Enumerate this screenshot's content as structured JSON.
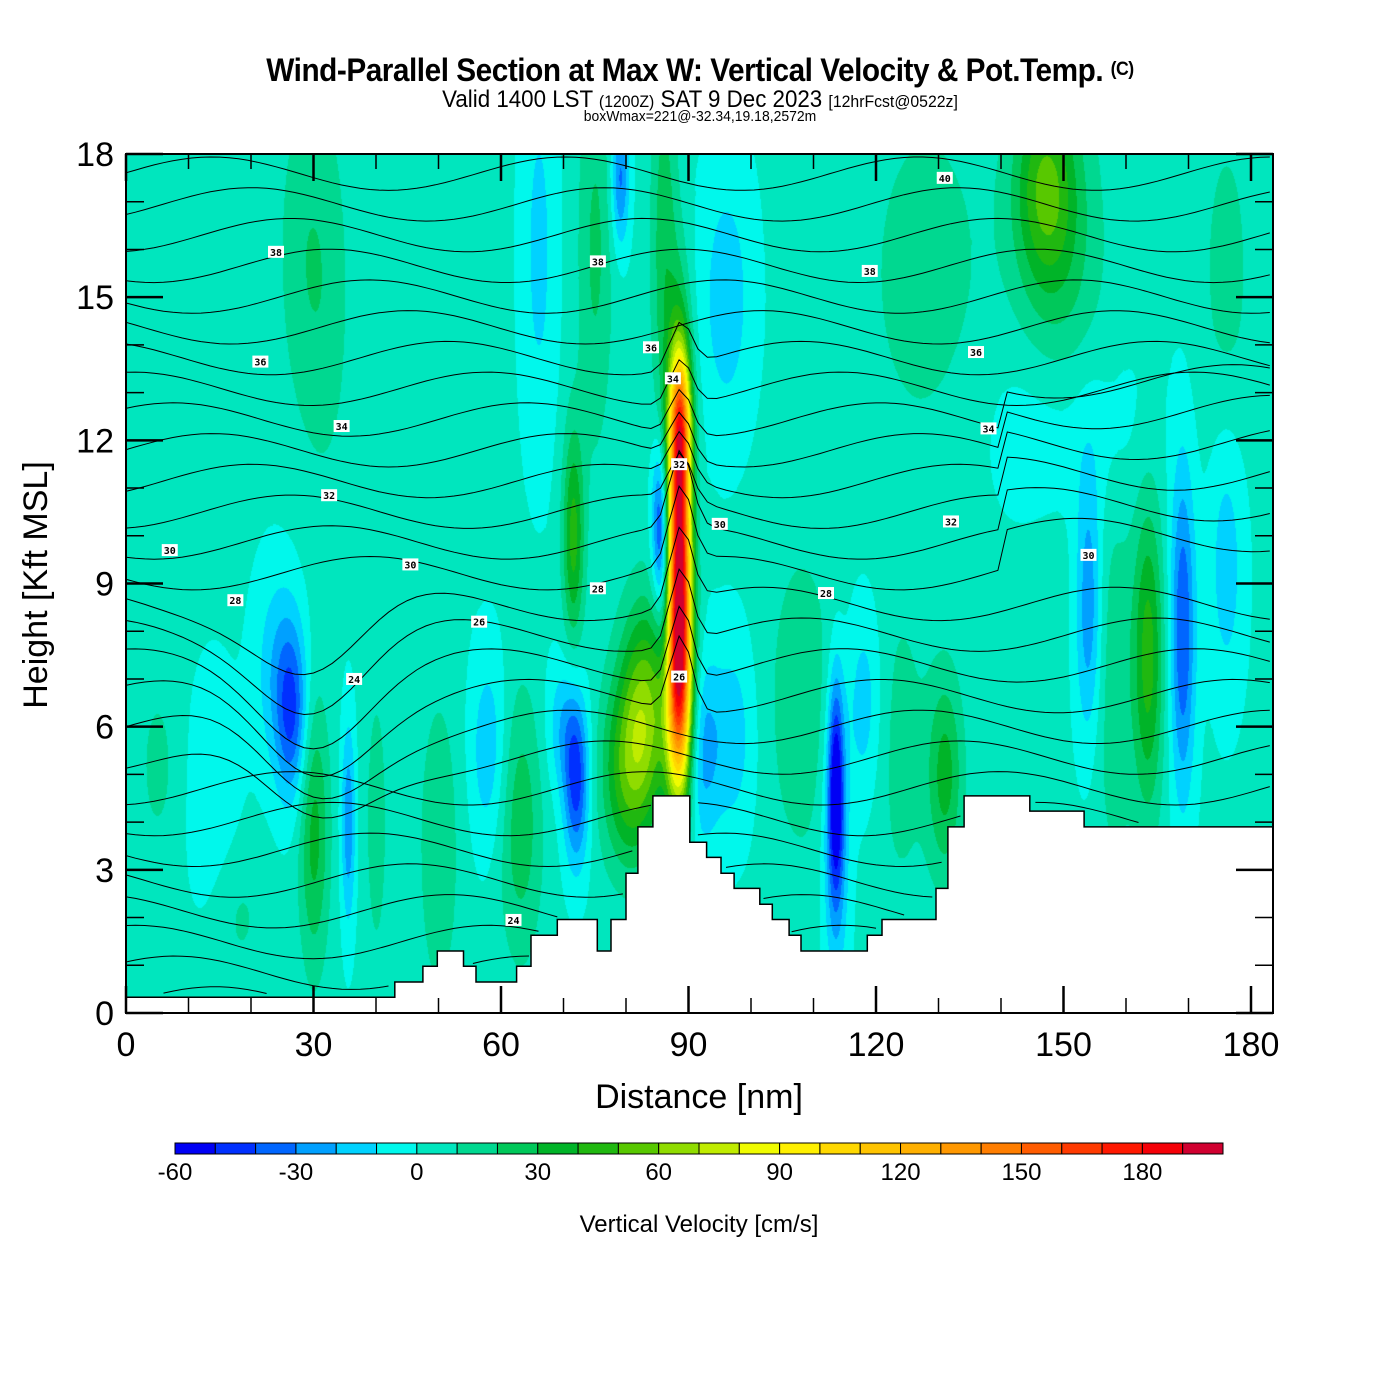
{
  "header": {
    "title": "Wind-Parallel Section at Max W: Vertical Velocity & Pot.Temp.",
    "copyright": "(C)",
    "valid_prefix": "Valid 1400 LST",
    "valid_utc": "(1200Z)",
    "valid_date": "SAT 9 Dec 2023",
    "forecast": "[12hrFcst@0522z]",
    "box_wmax": "boxWmax=221@-32.34,19.18,2572m"
  },
  "chart_data": {
    "type": "heatmap",
    "title": "Wind-Parallel Section at Max W: Vertical Velocity & Pot.Temp.",
    "xlabel": "Distance [nm]",
    "ylabel": "Height [Kft MSL]",
    "xlim": [
      0,
      183.5
    ],
    "ylim": [
      0,
      18
    ],
    "x_ticks": [
      "0",
      "30",
      "60",
      "90",
      "120",
      "150",
      "180"
    ],
    "x_tick_values": [
      0,
      30,
      60,
      90,
      120,
      150,
      180
    ],
    "x_minor_step": 10,
    "y_ticks": [
      "0",
      "3",
      "6",
      "9",
      "12",
      "15",
      "18"
    ],
    "y_tick_values": [
      0,
      3,
      6,
      9,
      12,
      15,
      18
    ],
    "y_minor_step": 1,
    "colorbar": {
      "label": "Vertical Velocity [cm/s]",
      "levels": [
        -60,
        -50,
        -40,
        -30,
        -20,
        -10,
        0,
        10,
        20,
        30,
        40,
        50,
        60,
        70,
        80,
        90,
        100,
        110,
        120,
        130,
        140,
        150,
        160,
        170,
        180,
        190,
        200
      ],
      "tick_labels": [
        "-60",
        "-30",
        "0",
        "30",
        "60",
        "90",
        "120",
        "150",
        "180"
      ],
      "tick_values": [
        -60,
        -30,
        0,
        30,
        60,
        90,
        120,
        150,
        180
      ],
      "colors": [
        "#0000f5",
        "#0030ff",
        "#0066ff",
        "#00a0ff",
        "#00d2ff",
        "#00f8ec",
        "#00e6be",
        "#00d890",
        "#00c85a",
        "#00b428",
        "#20b810",
        "#58c800",
        "#90dc00",
        "#c0ec00",
        "#f0fc00",
        "#fff000",
        "#ffd800",
        "#ffc400",
        "#ffb000",
        "#ff9800",
        "#ff7e00",
        "#ff5c00",
        "#ff3a00",
        "#ff1800",
        "#f50008",
        "#d00030"
      ]
    },
    "contour_field": "Potential Temperature",
    "contour_labels": [
      {
        "value": "40",
        "x": 131,
        "y": 17.5
      },
      {
        "value": "38",
        "x": 24,
        "y": 15.95
      },
      {
        "value": "38",
        "x": 75.5,
        "y": 15.75
      },
      {
        "value": "38",
        "x": 119,
        "y": 15.55
      },
      {
        "value": "36",
        "x": 21.5,
        "y": 13.65
      },
      {
        "value": "36",
        "x": 84,
        "y": 13.95
      },
      {
        "value": "36",
        "x": 136,
        "y": 13.85
      },
      {
        "value": "34",
        "x": 34.5,
        "y": 12.3
      },
      {
        "value": "34",
        "x": 87.5,
        "y": 13.3
      },
      {
        "value": "34",
        "x": 138,
        "y": 12.25
      },
      {
        "value": "32",
        "x": 32.5,
        "y": 10.85
      },
      {
        "value": "32",
        "x": 88.5,
        "y": 11.5
      },
      {
        "value": "32",
        "x": 132,
        "y": 10.3
      },
      {
        "value": "30",
        "x": 7,
        "y": 9.7
      },
      {
        "value": "30",
        "x": 45.5,
        "y": 9.4
      },
      {
        "value": "30",
        "x": 95,
        "y": 10.25
      },
      {
        "value": "30",
        "x": 154,
        "y": 9.6
      },
      {
        "value": "28",
        "x": 17.5,
        "y": 8.65
      },
      {
        "value": "28",
        "x": 75.5,
        "y": 8.9
      },
      {
        "value": "28",
        "x": 112,
        "y": 8.8
      },
      {
        "value": "26",
        "x": 56.5,
        "y": 8.2
      },
      {
        "value": "26",
        "x": 88.5,
        "y": 7.05
      },
      {
        "value": "24",
        "x": 36.5,
        "y": 7.0
      },
      {
        "value": "24",
        "x": 62,
        "y": 1.95
      }
    ],
    "terrain_kft": [
      [
        0,
        0.33
      ],
      [
        43,
        0.33
      ],
      [
        43,
        0.65
      ],
      [
        47.5,
        0.65
      ],
      [
        47.5,
        0.98
      ],
      [
        49.8,
        0.98
      ],
      [
        49.8,
        1.3
      ],
      [
        54,
        1.3
      ],
      [
        54,
        0.98
      ],
      [
        56,
        0.98
      ],
      [
        56,
        0.65
      ],
      [
        62.5,
        0.65
      ],
      [
        62.5,
        0.98
      ],
      [
        64.8,
        0.98
      ],
      [
        64.8,
        1.63
      ],
      [
        69,
        1.63
      ],
      [
        69,
        1.96
      ],
      [
        75.4,
        1.96
      ],
      [
        75.4,
        1.3
      ],
      [
        77.6,
        1.3
      ],
      [
        77.6,
        1.96
      ],
      [
        80,
        1.96
      ],
      [
        80,
        2.93
      ],
      [
        81.9,
        2.93
      ],
      [
        81.9,
        3.9
      ],
      [
        84.3,
        3.9
      ],
      [
        84.3,
        4.55
      ],
      [
        90.2,
        4.55
      ],
      [
        90.2,
        3.58
      ],
      [
        92.9,
        3.58
      ],
      [
        92.9,
        3.26
      ],
      [
        95.2,
        3.26
      ],
      [
        95.2,
        2.93
      ],
      [
        97.3,
        2.93
      ],
      [
        97.3,
        2.61
      ],
      [
        101.4,
        2.61
      ],
      [
        101.4,
        2.28
      ],
      [
        103.4,
        2.28
      ],
      [
        103.4,
        1.96
      ],
      [
        106.1,
        1.96
      ],
      [
        106.1,
        1.63
      ],
      [
        108,
        1.63
      ],
      [
        108,
        1.3
      ],
      [
        118.6,
        1.3
      ],
      [
        118.6,
        1.63
      ],
      [
        120.96,
        1.63
      ],
      [
        120.96,
        1.96
      ],
      [
        129.6,
        1.96
      ],
      [
        129.6,
        2.61
      ],
      [
        131.5,
        2.61
      ],
      [
        131.5,
        3.9
      ],
      [
        134.1,
        3.9
      ],
      [
        134.1,
        4.55
      ],
      [
        144.6,
        4.55
      ],
      [
        144.6,
        4.23
      ],
      [
        153.3,
        4.23
      ],
      [
        153.3,
        3.9
      ],
      [
        183.5,
        3.9
      ]
    ],
    "w_features": [
      {
        "x": 88.5,
        "y": 9.8,
        "w": 180,
        "note": "updraft core"
      },
      {
        "x": 88.3,
        "y": 6.2,
        "w": 100
      },
      {
        "x": 85.5,
        "y": 10.3,
        "w": -40
      },
      {
        "x": 71.5,
        "y": 10.0,
        "w": 40
      },
      {
        "x": 72,
        "y": 4.8,
        "w": -40
      },
      {
        "x": 113.5,
        "y": 4.8,
        "w": -50
      },
      {
        "x": 83,
        "y": 6.5,
        "w": 50
      },
      {
        "x": 163.5,
        "y": 7.5,
        "w": 40
      },
      {
        "x": 169,
        "y": 8,
        "w": -40
      },
      {
        "x": 154,
        "y": 8.5,
        "w": -30
      },
      {
        "x": 26.5,
        "y": 6.3,
        "w": -40
      },
      {
        "x": 30,
        "y": 3.8,
        "w": 30
      },
      {
        "x": 147,
        "y": 17.3,
        "w": 40
      }
    ]
  }
}
